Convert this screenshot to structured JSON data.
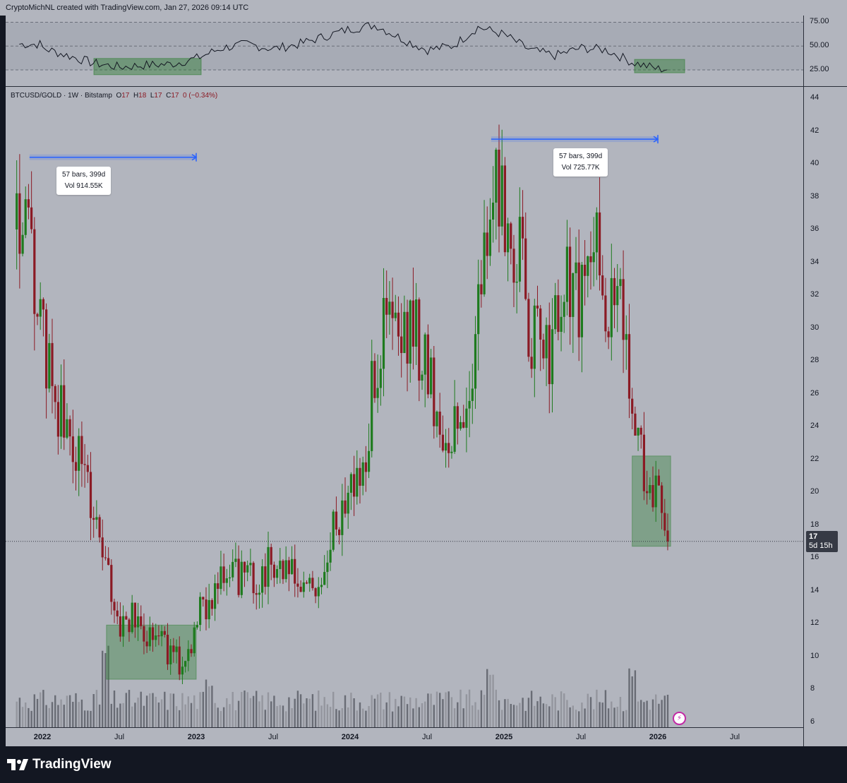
{
  "header": {
    "attribution": "CryptoMichNL created with TradingView.com, Jan 27, 2026 09:14 UTC"
  },
  "legend": {
    "symbol": "BTCUSD/GOLD · 1W · Bitstamp",
    "o_label": "O",
    "o_value": "17",
    "h_label": "H",
    "h_value": "18",
    "l_label": "L",
    "l_value": "17",
    "c_label": "C",
    "c_value": "17",
    "change": "0 (−0.34%)"
  },
  "measurements": [
    {
      "bars": "57 bars, 399d",
      "vol": "Vol 914.55K"
    },
    {
      "bars": "57 bars, 399d",
      "vol": "Vol 725.77K"
    }
  ],
  "current_price": {
    "value": "17",
    "countdown": "5d 15h"
  },
  "footer": {
    "brand": "TradingView"
  },
  "colors": {
    "up": "#1e7b1e",
    "down": "#8b1a24",
    "box": "#2e7d32",
    "measure": "#2962ff",
    "rsi_line": "#131722"
  },
  "chart_data": [
    {
      "type": "line",
      "title": "",
      "ylim": [
        8,
        82
      ],
      "y_ticks": [
        "75.00",
        "50.00",
        "25.00"
      ],
      "upper_band": 75,
      "lower_band": 25,
      "x": [
        "2022-01",
        "2022-03",
        "2022-05",
        "2022-07",
        "2022-09",
        "2022-11",
        "2023-01",
        "2023-03",
        "2023-05",
        "2023-07",
        "2023-09",
        "2023-11",
        "2024-01",
        "2024-03",
        "2024-05",
        "2024-07",
        "2024-09",
        "2024-11",
        "2025-01",
        "2025-03",
        "2025-05",
        "2025-07",
        "2025-09",
        "2025-11",
        "2026-01"
      ],
      "values": [
        48,
        40,
        32,
        28,
        30,
        31,
        37,
        48,
        52,
        47,
        52,
        60,
        68,
        72,
        58,
        46,
        50,
        70,
        62,
        46,
        40,
        48,
        46,
        33,
        26
      ]
    },
    {
      "type": "candlestick",
      "title": "",
      "ylim": [
        6,
        45
      ],
      "y_ticks": [
        "44",
        "42",
        "40",
        "38",
        "36",
        "34",
        "32",
        "30",
        "28",
        "26",
        "24",
        "22",
        "20",
        "18",
        "16",
        "14",
        "12",
        "10",
        "8",
        "6"
      ],
      "x_ticks": [
        {
          "label": "2022",
          "major": true
        },
        {
          "label": "Jul",
          "major": false
        },
        {
          "label": "2023",
          "major": true
        },
        {
          "label": "Jul",
          "major": false
        },
        {
          "label": "2024",
          "major": true
        },
        {
          "label": "Jul",
          "major": false
        },
        {
          "label": "2025",
          "major": true
        },
        {
          "label": "Jul",
          "major": false
        },
        {
          "label": "2026",
          "major": true
        },
        {
          "label": "Jul",
          "major": false
        }
      ],
      "price_path": [
        [
          "2021-11",
          36
        ],
        [
          "2021-12",
          35
        ],
        [
          "2022-01",
          29
        ],
        [
          "2022-02",
          26
        ],
        [
          "2022-03",
          23
        ],
        [
          "2022-04",
          22
        ],
        [
          "2022-05",
          19
        ],
        [
          "2022-06",
          15
        ],
        [
          "2022-07",
          12
        ],
        [
          "2022-08",
          12.2
        ],
        [
          "2022-09",
          11.6
        ],
        [
          "2022-10",
          11.8
        ],
        [
          "2022-11",
          10.0
        ],
        [
          "2022-12",
          9.5
        ],
        [
          "2023-01",
          12.0
        ],
        [
          "2023-02",
          13.8
        ],
        [
          "2023-03",
          14.4
        ],
        [
          "2023-04",
          15.0
        ],
        [
          "2023-05",
          14.6
        ],
        [
          "2023-06",
          14.8
        ],
        [
          "2023-07",
          16.0
        ],
        [
          "2023-08",
          15.0
        ],
        [
          "2023-09",
          14.2
        ],
        [
          "2023-10",
          14.0
        ],
        [
          "2023-11",
          14.8
        ],
        [
          "2023-12",
          18.5
        ],
        [
          "2024-01",
          20.8
        ],
        [
          "2024-02",
          21.0
        ],
        [
          "2024-03",
          28.0
        ],
        [
          "2024-04",
          31.0
        ],
        [
          "2024-05",
          28.5
        ],
        [
          "2024-06",
          30.0
        ],
        [
          "2024-07",
          28.0
        ],
        [
          "2024-08",
          24.0
        ],
        [
          "2024-09",
          23.5
        ],
        [
          "2024-10",
          24.5
        ],
        [
          "2024-11",
          31.0
        ],
        [
          "2024-12",
          38.0
        ],
        [
          "2025-01",
          37.0
        ],
        [
          "2025-02",
          35.0
        ],
        [
          "2025-03",
          30.0
        ],
        [
          "2025-04",
          28.0
        ],
        [
          "2025-05",
          30.0
        ],
        [
          "2025-06",
          33.0
        ],
        [
          "2025-07",
          31.0
        ],
        [
          "2025-08",
          35.5
        ],
        [
          "2025-09",
          32.0
        ],
        [
          "2025-10",
          31.0
        ],
        [
          "2025-11",
          27.0
        ],
        [
          "2025-12",
          21.0
        ],
        [
          "2026-01",
          19.5
        ],
        [
          "2026-01-27",
          17.0
        ]
      ],
      "volume_ylim": [
        0,
        140
      ],
      "volume_peaks": [
        [
          "2022-06",
          130
        ],
        [
          "2023-02",
          80
        ],
        [
          "2024-12",
          100
        ],
        [
          "2025-11",
          95
        ]
      ],
      "last_price": 17,
      "zones": [
        {
          "from": "2022-06",
          "to": "2023-01",
          "low": 8.6,
          "high": 11.9
        },
        {
          "from": "2025-11",
          "to": "2026-02",
          "low": 16.7,
          "high": 22.2
        }
      ],
      "measure_ranges": [
        {
          "from": "2021-12",
          "to": "2023-01",
          "price": 40.4
        },
        {
          "from": "2024-12",
          "to": "2026-01",
          "price": 41.5
        }
      ]
    }
  ]
}
